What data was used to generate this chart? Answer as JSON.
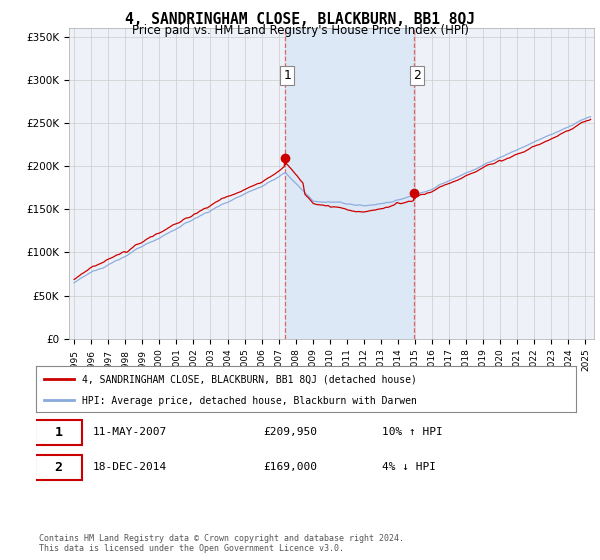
{
  "title": "4, SANDRINGHAM CLOSE, BLACKBURN, BB1 8QJ",
  "subtitle": "Price paid vs. HM Land Registry's House Price Index (HPI)",
  "ylabel_ticks": [
    "£0",
    "£50K",
    "£100K",
    "£150K",
    "£200K",
    "£250K",
    "£300K",
    "£350K"
  ],
  "ytick_values": [
    0,
    50000,
    100000,
    150000,
    200000,
    250000,
    300000,
    350000
  ],
  "ylim": [
    0,
    360000
  ],
  "xlim_start": 1994.7,
  "xlim_end": 2025.5,
  "sale1": {
    "date_num": 2007.36,
    "price": 209950,
    "label": "1",
    "date_str": "11-MAY-2007"
  },
  "sale2": {
    "date_num": 2014.96,
    "price": 169000,
    "label": "2",
    "date_str": "18-DEC-2014"
  },
  "legend_line1": "4, SANDRINGHAM CLOSE, BLACKBURN, BB1 8QJ (detached house)",
  "legend_line2": "HPI: Average price, detached house, Blackburn with Darwen",
  "table_row1": [
    "1",
    "11-MAY-2007",
    "£209,950",
    "10% ↑ HPI"
  ],
  "table_row2": [
    "2",
    "18-DEC-2014",
    "£169,000",
    "4% ↓ HPI"
  ],
  "footnote": "Contains HM Land Registry data © Crown copyright and database right 2024.\nThis data is licensed under the Open Government Licence v3.0.",
  "color_red": "#cc0000",
  "color_blue": "#88aadd",
  "color_grid": "#cccccc",
  "color_dashed": "#dd4444",
  "background_chart": "#eef2f8",
  "background_highlight": "#dce8f5"
}
